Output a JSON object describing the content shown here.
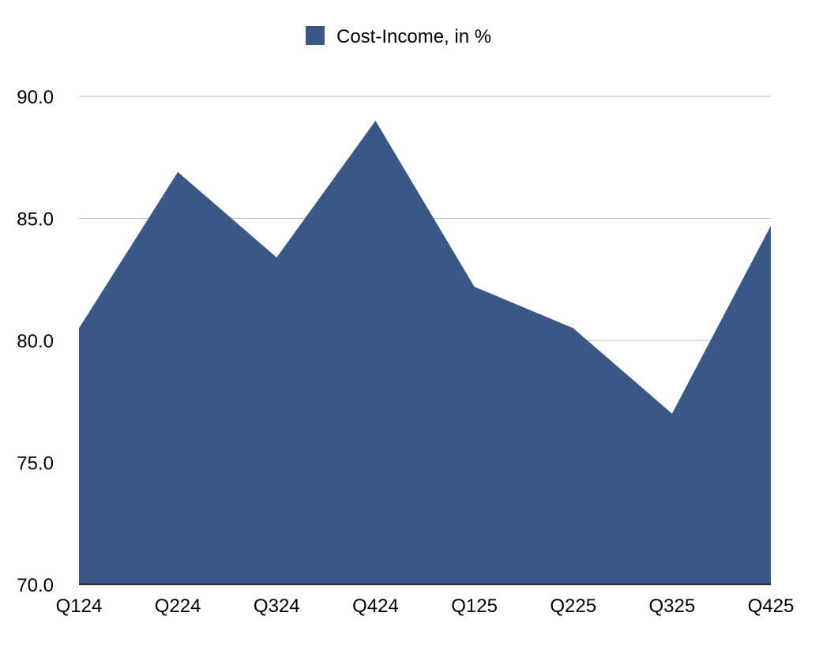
{
  "chart_data": {
    "type": "area",
    "categories": [
      "Q124",
      "Q224",
      "Q324",
      "Q424",
      "Q125",
      "Q225",
      "Q325",
      "Q425"
    ],
    "series": [
      {
        "name": "Cost-Income, in %",
        "values": [
          80.5,
          86.9,
          83.4,
          89.0,
          82.2,
          80.5,
          77.0,
          84.7
        ],
        "color": "#3a5786"
      }
    ],
    "ylim": [
      70.0,
      90.0
    ],
    "yticks": [
      "70.0",
      "75.0",
      "80.0",
      "85.0",
      "90.0"
    ],
    "grid": "horizontal",
    "legend_position": "top-center",
    "title": "",
    "xlabel": "",
    "ylabel": ""
  }
}
